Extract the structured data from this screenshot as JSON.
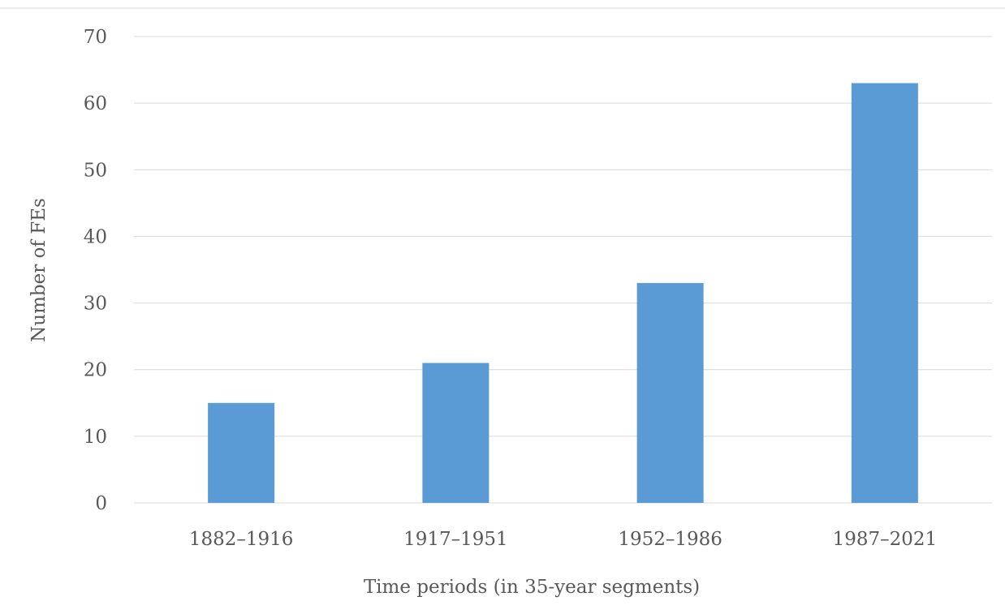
{
  "chart_data": {
    "type": "bar",
    "title": "",
    "xlabel": "Time periods (in 35-year segments)",
    "ylabel": "Number of FEs",
    "categories": [
      "1882–1916",
      "1917–1951",
      "1952–1986",
      "1987–2021"
    ],
    "values": [
      15,
      21,
      33,
      63
    ],
    "ylim": [
      0,
      70
    ],
    "yticks": [
      "0",
      "10",
      "20",
      "30",
      "40",
      "50",
      "60",
      "70"
    ],
    "grid": true,
    "legend": "none",
    "bar_color": "#5b9bd5",
    "grid_color": "#d9d9d9",
    "text_color": "#595959"
  }
}
